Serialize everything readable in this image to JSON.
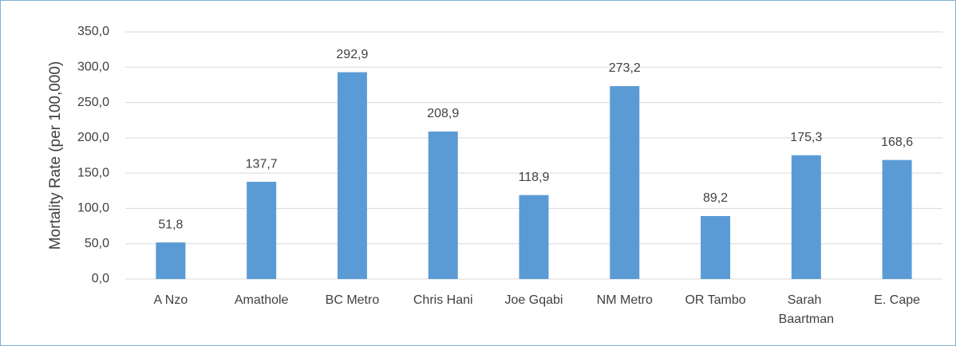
{
  "chart_data": {
    "type": "bar",
    "y_label": "Mortality Rate (per 100,000)",
    "categories": [
      "A Nzo",
      "Amathole",
      "BC Metro",
      "Chris Hani",
      "Joe Gqabi",
      "NM Metro",
      "OR Tambo",
      "Sarah Baartman",
      "E. Cape"
    ],
    "values": [
      51.8,
      137.7,
      292.9,
      208.9,
      118.9,
      273.2,
      89.2,
      175.3,
      168.6
    ],
    "value_labels": [
      "51,8",
      "137,7",
      "292,9",
      "208,9",
      "118,9",
      "273,2",
      "89,2",
      "175,3",
      "168,6"
    ],
    "color": "#5b9bd5",
    "ylim": [
      0,
      350
    ],
    "yticks": [
      {
        "value": 0,
        "label": "0,0"
      },
      {
        "value": 50,
        "label": "50,0"
      },
      {
        "value": 100,
        "label": "100,0"
      },
      {
        "value": 150,
        "label": "150,0"
      },
      {
        "value": 200,
        "label": "200,0"
      },
      {
        "value": 250,
        "label": "250,0"
      },
      {
        "value": 300,
        "label": "300,0"
      },
      {
        "value": 350,
        "label": "350,0"
      }
    ],
    "grid": true
  }
}
